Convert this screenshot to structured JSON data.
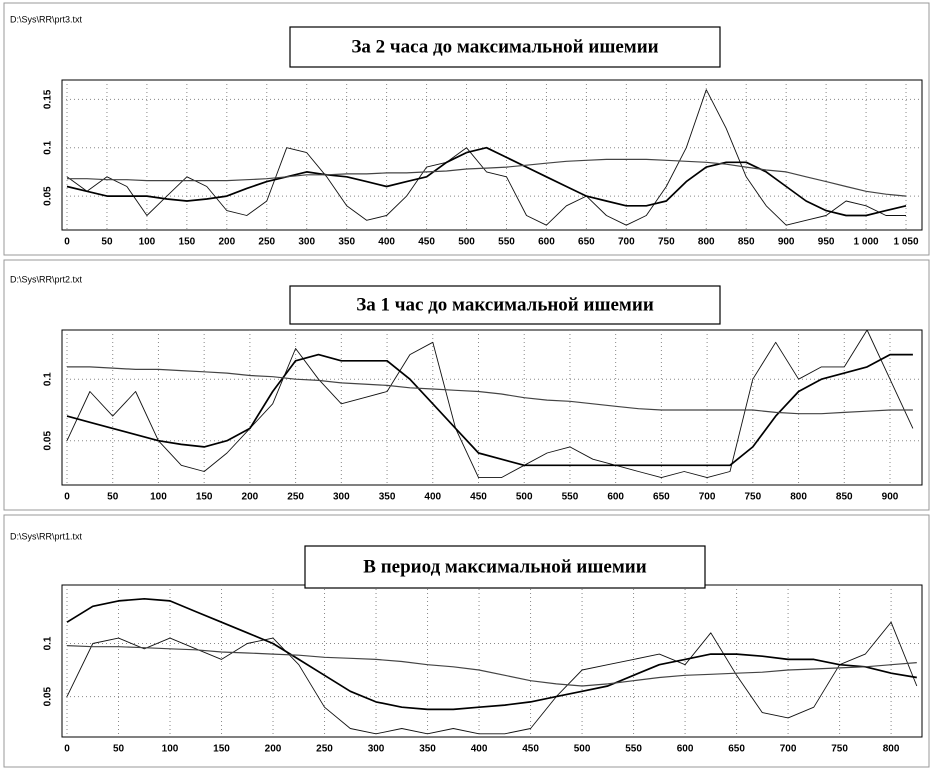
{
  "chart_data": [
    {
      "type": "line",
      "source": "D:\\Sys\\RR\\prt3.txt",
      "title": "За 2 часа до максимальной ишемии",
      "x": [
        0,
        25,
        50,
        75,
        100,
        125,
        150,
        175,
        200,
        225,
        250,
        275,
        300,
        325,
        350,
        375,
        400,
        425,
        450,
        475,
        500,
        525,
        550,
        575,
        600,
        625,
        650,
        675,
        700,
        725,
        750,
        775,
        800,
        825,
        850,
        875,
        900,
        925,
        950,
        975,
        1000,
        1025,
        1050
      ],
      "series": [
        {
          "color": "#111111",
          "values": [
            0.07,
            0.055,
            0.07,
            0.06,
            0.03,
            0.05,
            0.07,
            0.06,
            0.035,
            0.03,
            0.045,
            0.1,
            0.095,
            0.07,
            0.04,
            0.025,
            0.03,
            0.05,
            0.08,
            0.085,
            0.1,
            0.075,
            0.07,
            0.03,
            0.02,
            0.04,
            0.05,
            0.03,
            0.02,
            0.03,
            0.06,
            0.1,
            0.16,
            0.12,
            0.07,
            0.04,
            0.02,
            0.025,
            0.03,
            0.045,
            0.04,
            0.03,
            0.03
          ]
        },
        {
          "color": "#000000",
          "values": [
            0.06,
            0.055,
            0.05,
            0.05,
            0.05,
            0.047,
            0.045,
            0.047,
            0.05,
            0.058,
            0.065,
            0.07,
            0.075,
            0.072,
            0.07,
            0.065,
            0.06,
            0.065,
            0.07,
            0.085,
            0.095,
            0.1,
            0.09,
            0.08,
            0.07,
            0.06,
            0.05,
            0.045,
            0.04,
            0.04,
            0.045,
            0.065,
            0.08,
            0.085,
            0.085,
            0.075,
            0.06,
            0.045,
            0.035,
            0.03,
            0.03,
            0.035,
            0.04
          ]
        },
        {
          "color": "#444444",
          "values": [
            0.068,
            0.068,
            0.067,
            0.067,
            0.066,
            0.066,
            0.066,
            0.066,
            0.066,
            0.067,
            0.068,
            0.07,
            0.072,
            0.072,
            0.073,
            0.073,
            0.074,
            0.074,
            0.075,
            0.076,
            0.078,
            0.079,
            0.08,
            0.082,
            0.084,
            0.086,
            0.087,
            0.088,
            0.088,
            0.088,
            0.087,
            0.086,
            0.085,
            0.083,
            0.08,
            0.077,
            0.075,
            0.07,
            0.065,
            0.06,
            0.055,
            0.052,
            0.05
          ]
        }
      ],
      "xlim": [
        0,
        1070
      ],
      "xticks": [
        0,
        50,
        100,
        150,
        200,
        250,
        300,
        350,
        400,
        450,
        500,
        550,
        600,
        650,
        700,
        750,
        800,
        850,
        900,
        950,
        {
          "value": 1000,
          "label": "1 000"
        },
        {
          "value": 1050,
          "label": "1 050"
        }
      ],
      "ylim": [
        0.015,
        0.17
      ],
      "yticks": [
        0.05,
        0.1,
        0.15
      ],
      "grid": true
    },
    {
      "type": "line",
      "source": "D:\\Sys\\RR\\prt2.txt",
      "title": "За 1 час до максимальной ишемии",
      "x": [
        0,
        25,
        50,
        75,
        100,
        125,
        150,
        175,
        200,
        225,
        250,
        275,
        300,
        325,
        350,
        375,
        400,
        425,
        450,
        475,
        500,
        525,
        550,
        575,
        600,
        625,
        650,
        675,
        700,
        725,
        750,
        775,
        800,
        825,
        850,
        875,
        900,
        925
      ],
      "series": [
        {
          "color": "#111111",
          "values": [
            0.05,
            0.09,
            0.07,
            0.09,
            0.05,
            0.03,
            0.025,
            0.04,
            0.06,
            0.08,
            0.125,
            0.1,
            0.08,
            0.085,
            0.09,
            0.12,
            0.13,
            0.06,
            0.02,
            0.02,
            0.03,
            0.04,
            0.045,
            0.035,
            0.03,
            0.025,
            0.02,
            0.025,
            0.02,
            0.025,
            0.1,
            0.13,
            0.1,
            0.11,
            0.11,
            0.14,
            0.1,
            0.06
          ]
        },
        {
          "color": "#000000",
          "values": [
            0.07,
            0.065,
            0.06,
            0.055,
            0.05,
            0.047,
            0.045,
            0.05,
            0.06,
            0.09,
            0.115,
            0.12,
            0.115,
            0.115,
            0.115,
            0.1,
            0.08,
            0.06,
            0.04,
            0.035,
            0.03,
            0.03,
            0.03,
            0.03,
            0.03,
            0.03,
            0.03,
            0.03,
            0.03,
            0.03,
            0.045,
            0.07,
            0.09,
            0.1,
            0.105,
            0.11,
            0.12,
            0.12
          ]
        },
        {
          "color": "#444444",
          "values": [
            0.11,
            0.11,
            0.109,
            0.108,
            0.108,
            0.107,
            0.106,
            0.105,
            0.103,
            0.102,
            0.1,
            0.099,
            0.097,
            0.096,
            0.095,
            0.093,
            0.092,
            0.091,
            0.09,
            0.088,
            0.085,
            0.083,
            0.082,
            0.08,
            0.078,
            0.076,
            0.075,
            0.075,
            0.075,
            0.075,
            0.075,
            0.073,
            0.072,
            0.072,
            0.073,
            0.074,
            0.075,
            0.075
          ]
        }
      ],
      "xlim": [
        0,
        935
      ],
      "xticks": [
        0,
        50,
        100,
        150,
        200,
        250,
        300,
        350,
        400,
        450,
        500,
        550,
        600,
        650,
        700,
        750,
        800,
        850,
        900
      ],
      "ylim": [
        0.014,
        0.14
      ],
      "yticks": [
        0.05,
        0.1
      ],
      "grid": true
    },
    {
      "type": "line",
      "source": "D:\\Sys\\RR\\prt1.txt",
      "title": "В период максимальной ишемии",
      "x": [
        0,
        25,
        50,
        75,
        100,
        125,
        150,
        175,
        200,
        225,
        250,
        275,
        300,
        325,
        350,
        375,
        400,
        425,
        450,
        475,
        500,
        525,
        550,
        575,
        600,
        625,
        650,
        675,
        700,
        725,
        750,
        775,
        800,
        825
      ],
      "series": [
        {
          "color": "#111111",
          "values": [
            0.05,
            0.1,
            0.105,
            0.095,
            0.105,
            0.095,
            0.085,
            0.1,
            0.105,
            0.08,
            0.04,
            0.02,
            0.015,
            0.02,
            0.015,
            0.02,
            0.015,
            0.015,
            0.02,
            0.05,
            0.075,
            0.08,
            0.085,
            0.09,
            0.08,
            0.11,
            0.07,
            0.035,
            0.03,
            0.04,
            0.08,
            0.09,
            0.12,
            0.06
          ]
        },
        {
          "color": "#000000",
          "values": [
            0.12,
            0.135,
            0.14,
            0.142,
            0.14,
            0.13,
            0.12,
            0.11,
            0.1,
            0.085,
            0.07,
            0.055,
            0.045,
            0.04,
            0.038,
            0.038,
            0.04,
            0.042,
            0.045,
            0.05,
            0.055,
            0.06,
            0.07,
            0.08,
            0.085,
            0.09,
            0.09,
            0.088,
            0.085,
            0.085,
            0.08,
            0.078,
            0.072,
            0.068
          ]
        },
        {
          "color": "#444444",
          "values": [
            0.098,
            0.097,
            0.097,
            0.096,
            0.095,
            0.094,
            0.092,
            0.091,
            0.09,
            0.089,
            0.087,
            0.086,
            0.085,
            0.083,
            0.08,
            0.078,
            0.075,
            0.07,
            0.065,
            0.062,
            0.06,
            0.062,
            0.065,
            0.068,
            0.07,
            0.071,
            0.072,
            0.073,
            0.075,
            0.076,
            0.077,
            0.078,
            0.08,
            0.082
          ]
        }
      ],
      "xlim": [
        0,
        830
      ],
      "xticks": [
        0,
        50,
        100,
        150,
        200,
        250,
        300,
        350,
        400,
        450,
        500,
        550,
        600,
        650,
        700,
        750,
        800
      ],
      "ylim": [
        0.012,
        0.155
      ],
      "yticks": [
        0.05,
        0.1
      ],
      "grid": true
    }
  ]
}
